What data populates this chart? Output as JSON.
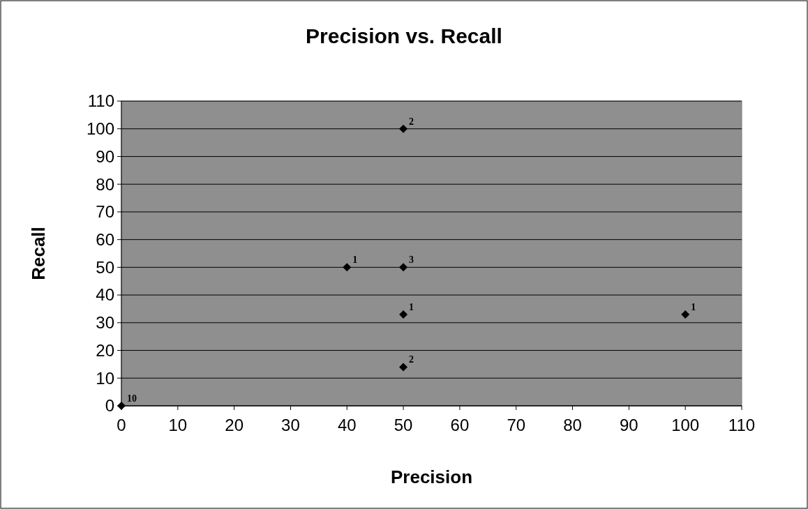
{
  "chart_data": {
    "type": "scatter",
    "title": "Precision vs. Recall",
    "xlabel": "Precision",
    "ylabel": "Recall",
    "series": [
      {
        "color": "#000000",
        "x": [
          0,
          40,
          50,
          50,
          50,
          50,
          100
        ],
        "values": [
          0,
          50,
          100,
          50,
          33,
          14,
          33
        ]
      }
    ],
    "annotations": [
      {
        "text": "10",
        "x": 0,
        "y": 0
      },
      {
        "text": "1",
        "x": 40,
        "y": 50
      },
      {
        "text": "2",
        "x": 50,
        "y": 100
      },
      {
        "text": "3",
        "x": 50,
        "y": 50
      },
      {
        "text": "1",
        "x": 50,
        "y": 33
      },
      {
        "text": "2",
        "x": 50,
        "y": 14
      },
      {
        "text": "1",
        "x": 100,
        "y": 33
      }
    ],
    "xlim": [
      0,
      110
    ],
    "xticks": [
      0,
      10,
      20,
      30,
      40,
      50,
      60,
      70,
      80,
      90,
      100,
      110
    ],
    "ylim": [
      0,
      110
    ],
    "yticks": [
      0,
      10,
      20,
      30,
      40,
      50,
      60,
      70,
      80,
      90,
      100,
      110
    ],
    "grid": "y",
    "marker": "diamond"
  }
}
